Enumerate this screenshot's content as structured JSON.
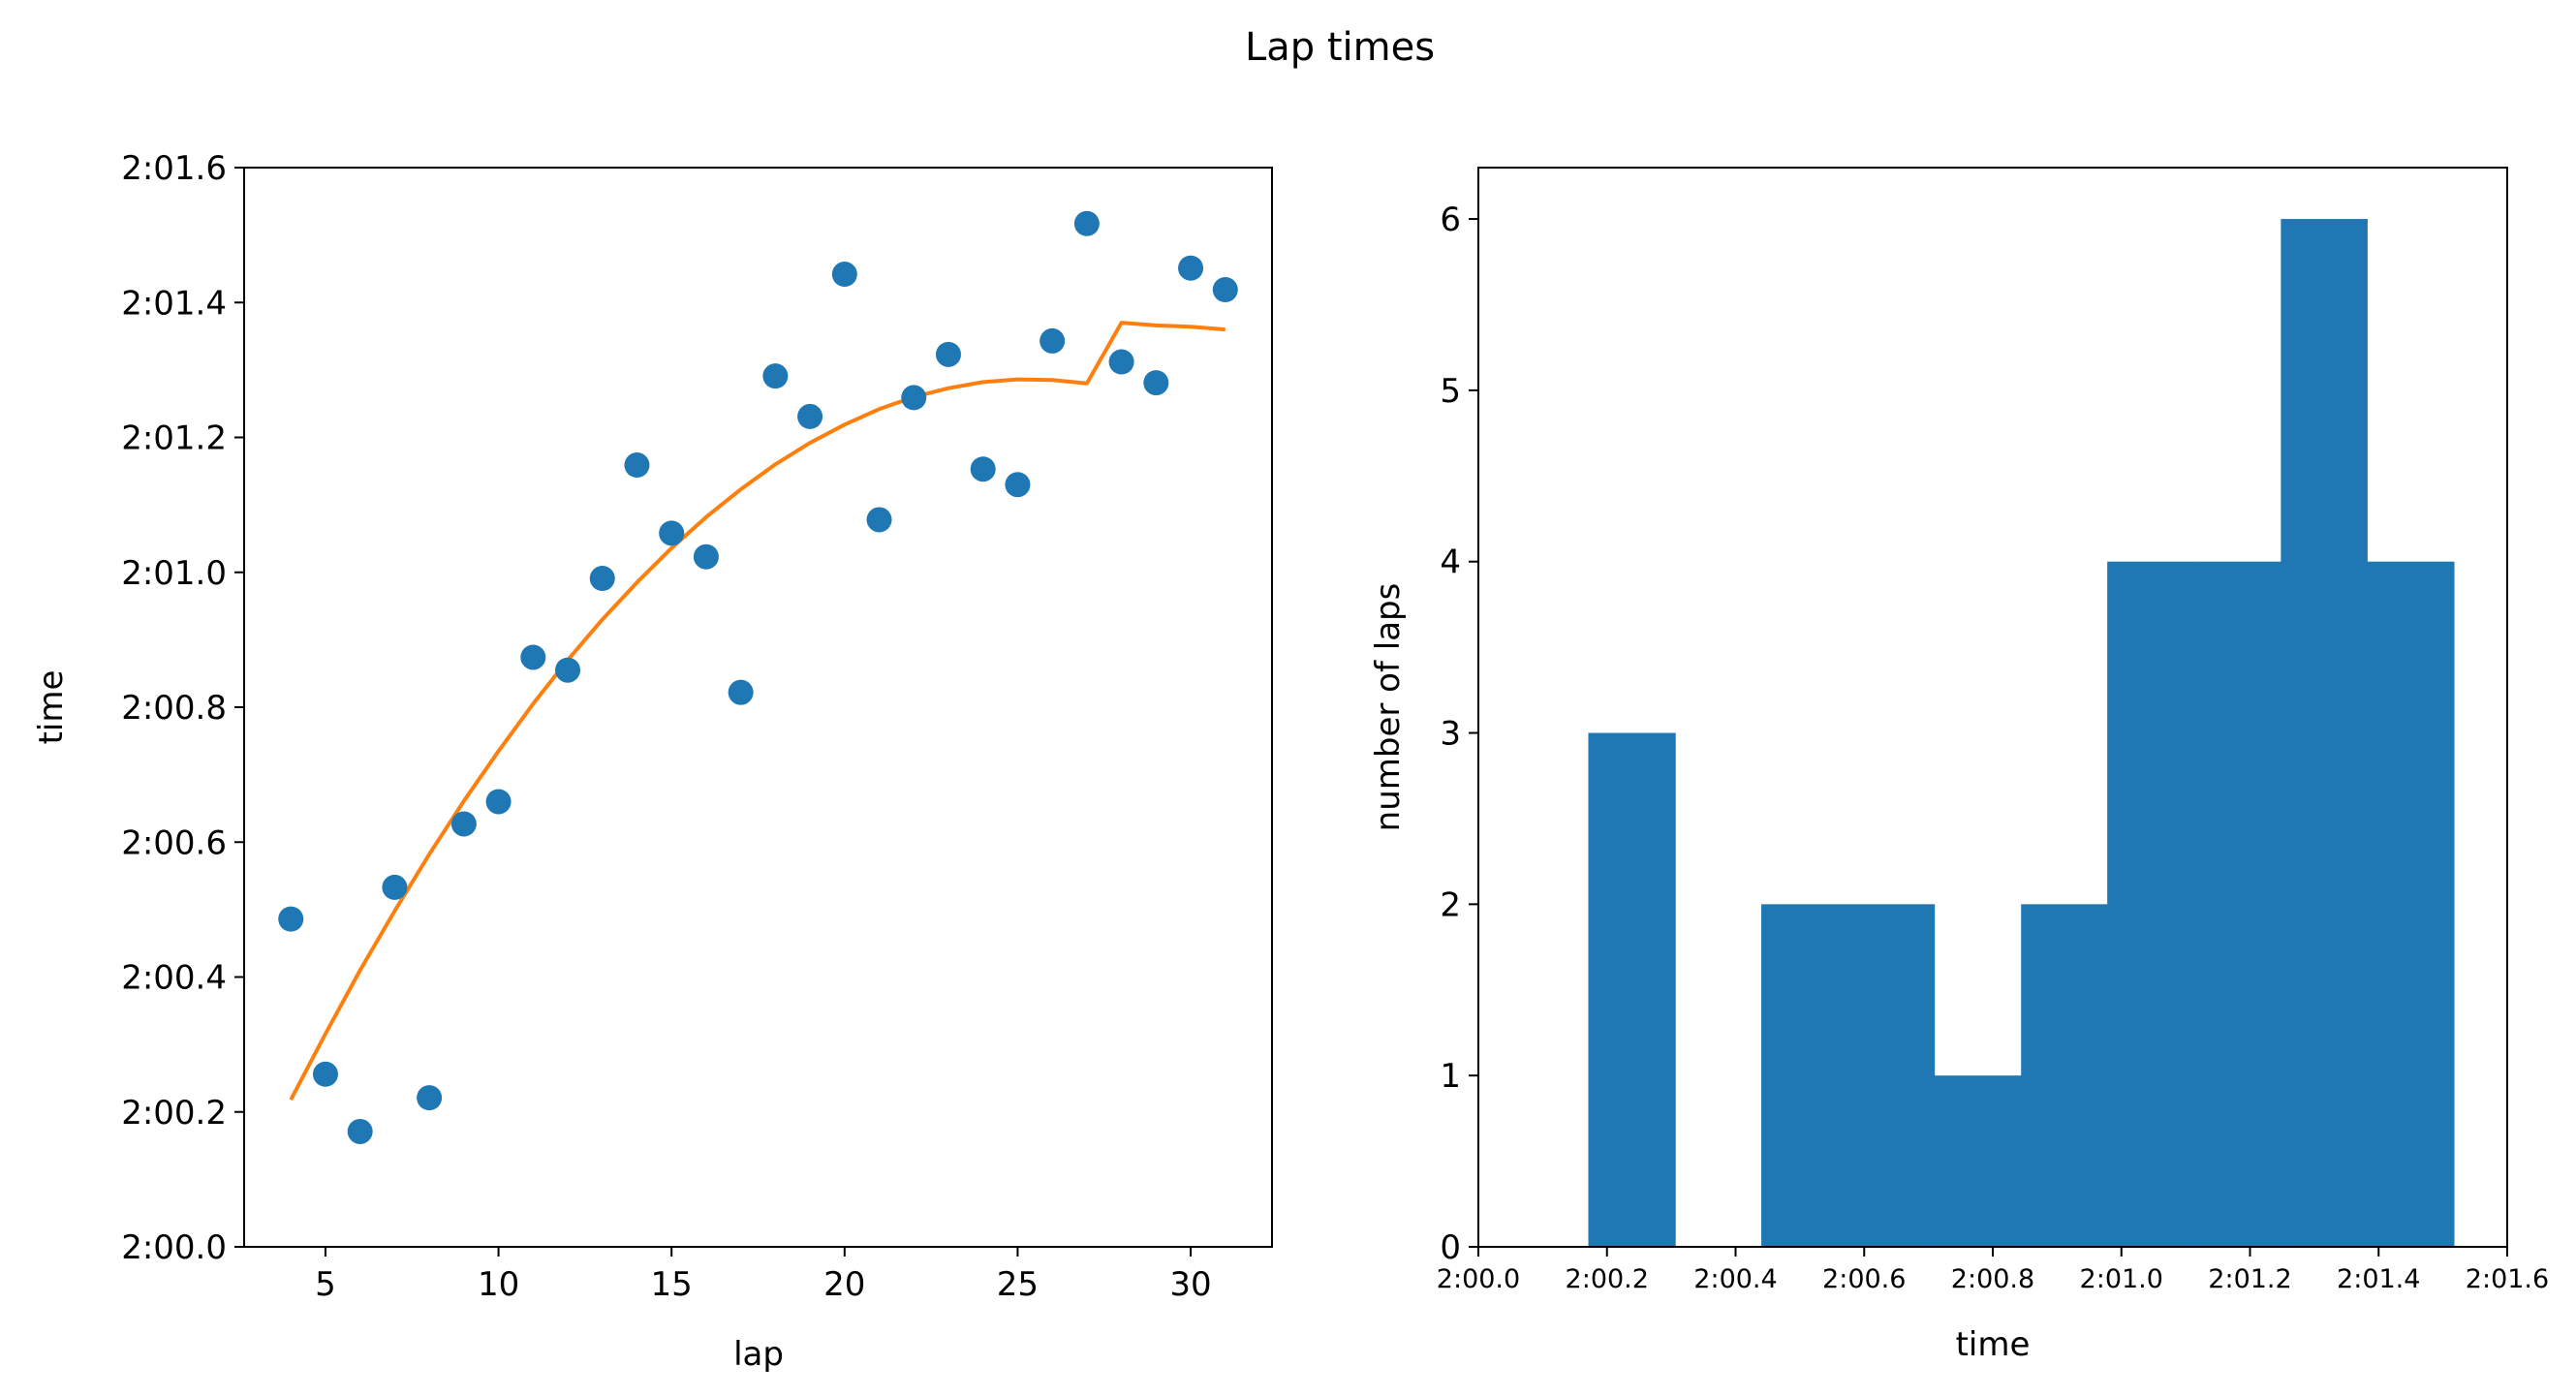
{
  "figure": {
    "title": "Lap times"
  },
  "chart_data": [
    {
      "type": "scatter",
      "xlabel": "lap",
      "ylabel": "time",
      "xlim": [
        2.65,
        32.35
      ],
      "ylim": [
        120.0,
        121.6
      ],
      "xticks": [
        5,
        10,
        15,
        20,
        25,
        30
      ],
      "xtick_labels": [
        "5",
        "10",
        "15",
        "20",
        "25",
        "30"
      ],
      "yticks": [
        120.0,
        120.2,
        120.4,
        120.6,
        120.8,
        121.0,
        121.2,
        121.4,
        121.6
      ],
      "ytick_labels": [
        "2:00.0",
        "2:00.2",
        "2:00.4",
        "2:00.6",
        "2:00.8",
        "2:01.0",
        "2:01.2",
        "2:01.4",
        "2:01.6"
      ],
      "grid": false,
      "series": [
        {
          "kind": "points",
          "color": "#1f77b4",
          "x": [
            4,
            5,
            6,
            7,
            8,
            9,
            10,
            11,
            12,
            13,
            14,
            15,
            16,
            17,
            18,
            19,
            20,
            21,
            22,
            23,
            24,
            25,
            26,
            27,
            28,
            29,
            30,
            31
          ],
          "y": [
            120.486,
            120.256,
            120.171,
            120.533,
            120.221,
            120.627,
            120.66,
            120.874,
            120.855,
            120.991,
            121.159,
            121.058,
            121.023,
            120.822,
            121.291,
            121.231,
            121.442,
            121.078,
            121.259,
            121.323,
            121.153,
            121.13,
            121.343,
            121.517,
            121.312,
            121.281,
            121.451,
            121.419
          ]
        },
        {
          "kind": "fit-line",
          "color": "#ff7f0e",
          "x": [
            4,
            5,
            6,
            7,
            8,
            9,
            10,
            11,
            12,
            13,
            14,
            15,
            16,
            17,
            18,
            19,
            20,
            21,
            22,
            23,
            24,
            25,
            26,
            27,
            28,
            29,
            30,
            31
          ],
          "y": [
            120.218,
            120.316,
            120.41,
            120.498,
            120.582,
            120.661,
            120.735,
            120.805,
            120.87,
            120.93,
            120.985,
            121.036,
            121.082,
            121.123,
            121.16,
            121.192,
            121.219,
            121.242,
            121.26,
            121.273,
            121.282,
            121.286,
            121.285,
            121.28,
            121.37,
            121.366,
            121.364,
            121.36
          ]
        }
      ]
    },
    {
      "type": "bar",
      "subtype": "histogram",
      "xlabel": "time",
      "ylabel": "number of laps",
      "xlim": [
        120.0,
        121.6
      ],
      "ylim": [
        0,
        6.3
      ],
      "xticks": [
        120.0,
        120.2,
        120.4,
        120.6,
        120.8,
        121.0,
        121.2,
        121.4,
        121.6
      ],
      "xtick_labels": [
        "2:00.0",
        "2:00.2",
        "2:00.4",
        "2:00.6",
        "2:00.8",
        "2:01.0",
        "2:01.2",
        "2:01.4",
        "2:01.6"
      ],
      "yticks": [
        0,
        1,
        2,
        3,
        4,
        5,
        6
      ],
      "ytick_labels": [
        "0",
        "1",
        "2",
        "3",
        "4",
        "5",
        "6"
      ],
      "grid": false,
      "color": "#1f77b4",
      "bin_edges": [
        120.171,
        120.306,
        120.44,
        120.575,
        120.709,
        120.844,
        120.978,
        121.113,
        121.248,
        121.382,
        121.517
      ],
      "counts": [
        3,
        0,
        2,
        2,
        1,
        2,
        4,
        4,
        6,
        4
      ]
    }
  ]
}
